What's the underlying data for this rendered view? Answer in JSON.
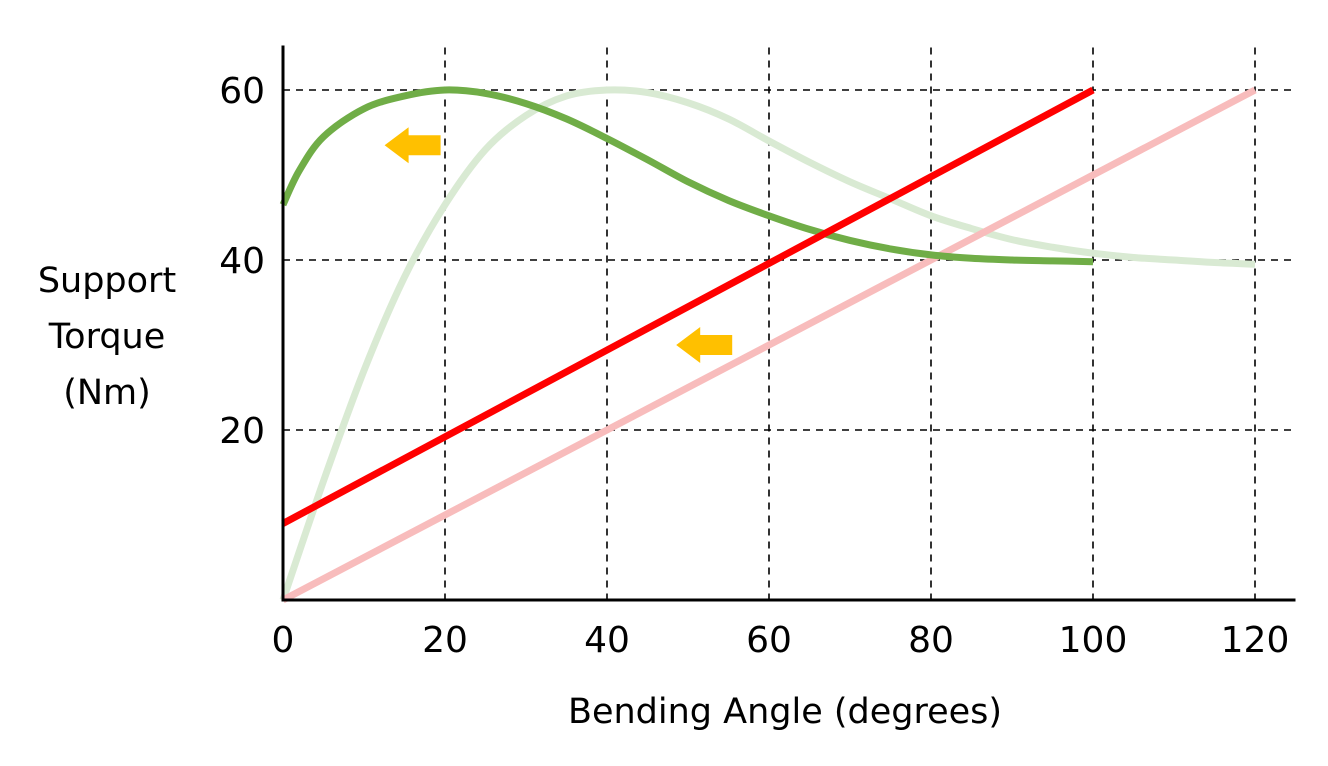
{
  "chart_data": {
    "type": "line",
    "title": "",
    "xlabel": "Bending Angle (degrees)",
    "ylabel_lines": [
      "Support",
      "Torque",
      "(Nm)"
    ],
    "xlim": [
      0,
      125
    ],
    "ylim": [
      0,
      65
    ],
    "x_ticks": [
      0,
      20,
      40,
      60,
      80,
      100,
      120
    ],
    "y_ticks": [
      20,
      40,
      60
    ],
    "grid": true,
    "legend": "none",
    "series": [
      {
        "key": "green-faded",
        "color": "#d9ead3",
        "x": [
          0,
          5,
          10,
          15,
          20,
          25,
          30,
          35,
          40,
          45,
          50,
          55,
          60,
          65,
          70,
          75,
          80,
          85,
          90,
          95,
          100,
          105,
          110,
          115,
          120
        ],
        "values": [
          0,
          14,
          27,
          38,
          46.5,
          53,
          57,
          59.3,
          60,
          59.7,
          58.5,
          56.6,
          54,
          51.5,
          49.2,
          47.2,
          45.2,
          43.7,
          42.4,
          41.5,
          40.8,
          40.3,
          40,
          39.7,
          39.5
        ]
      },
      {
        "key": "red-faded",
        "color": "#f8bcbc",
        "x": [
          0,
          120
        ],
        "values": [
          0,
          60
        ]
      },
      {
        "key": "green",
        "color": "#70ad47",
        "x": [
          0,
          2,
          5,
          10,
          15,
          20,
          25,
          30,
          35,
          40,
          45,
          50,
          55,
          60,
          65,
          70,
          75,
          80,
          85,
          90,
          95,
          100
        ],
        "values": [
          46.5,
          50.5,
          54.5,
          57.8,
          59.3,
          60,
          59.6,
          58.4,
          56.6,
          54.3,
          51.8,
          49.2,
          47,
          45.2,
          43.6,
          42.3,
          41.3,
          40.6,
          40.2,
          40,
          39.9,
          39.8
        ]
      },
      {
        "key": "red",
        "color": "#ff0000",
        "x": [
          0,
          100
        ],
        "values": [
          9,
          60
        ]
      }
    ],
    "annotations": [
      {
        "type": "arrow",
        "direction": "left",
        "color": "#ffc000",
        "x": 16,
        "y": 53.5
      },
      {
        "type": "arrow",
        "direction": "left",
        "color": "#ffc000",
        "x": 52,
        "y": 30
      }
    ]
  }
}
